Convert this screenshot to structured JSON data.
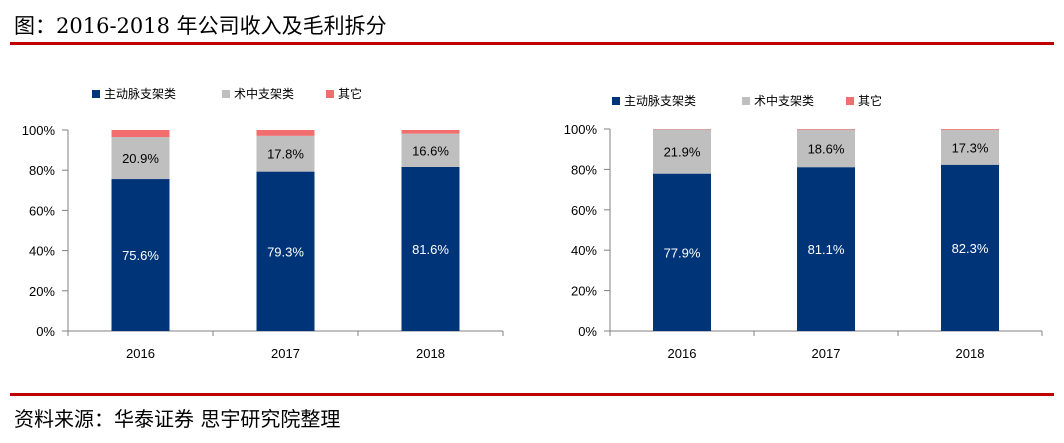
{
  "title": "图：2016-2018 年公司收入及毛利拆分",
  "source": "资料来源：华泰证券 思宇研究院整理",
  "colors": {
    "accent": "#c00000",
    "series": [
      "#003478",
      "#bfbfbf",
      "#f26e6e"
    ]
  },
  "chart_data": [
    {
      "type": "bar",
      "stacked": true,
      "title": "",
      "categories": [
        "2016",
        "2017",
        "2018"
      ],
      "series": [
        {
          "name": "主动脉支架类",
          "values": [
            75.6,
            79.3,
            81.6
          ]
        },
        {
          "name": "术中支架类",
          "values": [
            20.9,
            17.8,
            16.6
          ]
        },
        {
          "name": "其它",
          "values": [
            3.5,
            2.9,
            1.8
          ]
        }
      ],
      "labeled_series": [
        0,
        1
      ],
      "y_ticks": [
        "0%",
        "20%",
        "40%",
        "60%",
        "80%",
        "100%"
      ],
      "ylim": [
        0,
        100
      ],
      "legend": "top-left",
      "grid": false
    },
    {
      "type": "bar",
      "stacked": true,
      "title": "",
      "categories": [
        "2016",
        "2017",
        "2018"
      ],
      "series": [
        {
          "name": "主动脉支架类",
          "values": [
            77.9,
            81.1,
            82.3
          ]
        },
        {
          "name": "术中支架类",
          "values": [
            21.9,
            18.6,
            17.3
          ]
        },
        {
          "name": "其它",
          "values": [
            0.2,
            0.3,
            0.4
          ]
        }
      ],
      "labeled_series": [
        0,
        1
      ],
      "y_ticks": [
        "0%",
        "20%",
        "40%",
        "60%",
        "80%",
        "100%"
      ],
      "ylim": [
        0,
        100
      ],
      "legend": "top-left",
      "grid": false
    }
  ]
}
